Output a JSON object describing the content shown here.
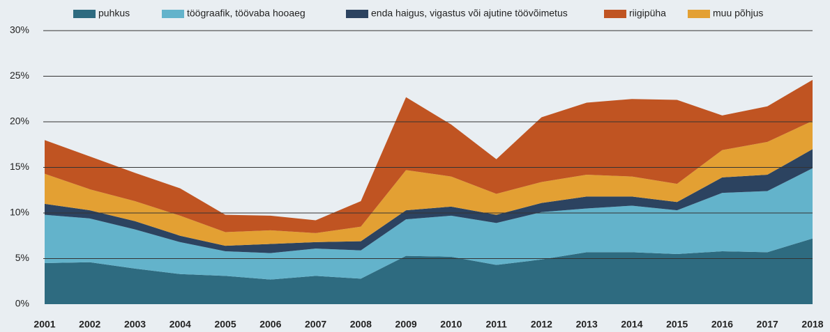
{
  "chart_data": {
    "type": "stacked_area",
    "x": [
      2001,
      2002,
      2003,
      2004,
      2005,
      2006,
      2007,
      2008,
      2009,
      2010,
      2011,
      2012,
      2013,
      2014,
      2015,
      2016,
      2017,
      2018
    ],
    "xlim": [
      2001,
      2018
    ],
    "ylim": [
      0,
      30
    ],
    "yticks": [
      {
        "value": 0,
        "label": "0%"
      },
      {
        "value": 5,
        "label": "5%"
      },
      {
        "value": 10,
        "label": "10%"
      },
      {
        "value": 15,
        "label": "15%"
      },
      {
        "value": 20,
        "label": "20%"
      },
      {
        "value": 25,
        "label": "25%"
      },
      {
        "value": 30,
        "label": "30%"
      }
    ],
    "grid": true,
    "legend": "top",
    "series": [
      {
        "name": "puhkus",
        "color": "#2e6b80",
        "values": [
          4.5,
          4.6,
          3.9,
          3.3,
          3.1,
          2.7,
          3.1,
          2.8,
          5.3,
          5.2,
          4.3,
          4.9,
          5.7,
          5.7,
          5.5,
          5.8,
          5.7,
          7.2
        ]
      },
      {
        "name": "töögraafik, töövaba hooaeg",
        "color": "#63b3cb",
        "values": [
          5.3,
          4.8,
          4.3,
          3.5,
          2.7,
          2.9,
          3.0,
          3.1,
          4.0,
          4.5,
          4.6,
          5.2,
          4.8,
          5.1,
          4.8,
          6.4,
          6.7,
          7.7
        ]
      },
      {
        "name": "enda haigus, vigastus või ajutine töövõimetus",
        "color": "#2c4360",
        "values": [
          1.2,
          0.9,
          0.9,
          0.7,
          0.6,
          1.0,
          0.7,
          1.0,
          1.0,
          1.0,
          0.9,
          1.0,
          1.3,
          1.0,
          0.9,
          1.7,
          1.8,
          2.1
        ]
      },
      {
        "name": "riigipüha",
        "color": "#c05422",
        "values": [
          3.7,
          3.6,
          3.1,
          3.0,
          1.9,
          1.6,
          1.4,
          2.8,
          8.0,
          5.7,
          3.8,
          7.1,
          7.9,
          8.5,
          9.2,
          3.8,
          3.9,
          4.5
        ]
      },
      {
        "name": "muu põhjus",
        "color": "#e3a033",
        "values": [
          3.3,
          2.3,
          2.2,
          2.2,
          1.5,
          1.5,
          1.0,
          1.6,
          4.4,
          3.3,
          2.3,
          2.3,
          2.4,
          2.2,
          2.0,
          3.0,
          3.6,
          3.1
        ]
      }
    ]
  }
}
